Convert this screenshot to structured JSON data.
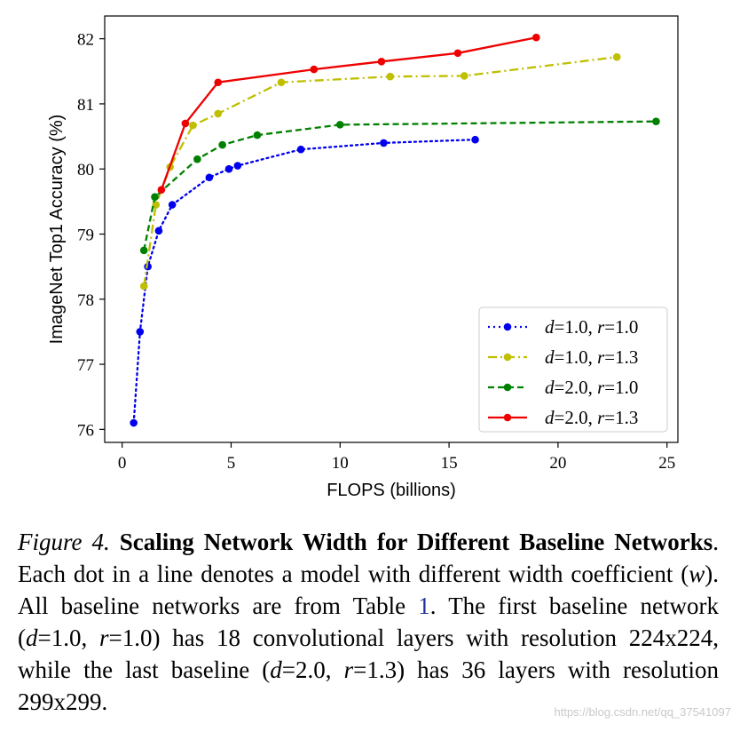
{
  "chart_data": {
    "type": "line",
    "xlabel": "FLOPS (billions)",
    "ylabel": "ImageNet Top1 Accuracy (%)",
    "xlim": [
      -0.8,
      25.5
    ],
    "ylim": [
      75.8,
      82.35
    ],
    "xticks": [
      0,
      5,
      10,
      15,
      20,
      25
    ],
    "yticks": [
      76,
      77,
      78,
      79,
      80,
      81,
      82
    ],
    "grid": false,
    "legend_position": "lower-right",
    "series": [
      {
        "label_d": "d",
        "label_eq1": "=1.0, ",
        "label_r": "r",
        "label_eq2": "=1.0",
        "color": "#0000ee",
        "linestyle": "dotted",
        "x": [
          0.53,
          0.82,
          1.18,
          1.68,
          2.3,
          4.0,
          4.9,
          5.3,
          8.2,
          12.0,
          16.2
        ],
        "y": [
          76.1,
          77.5,
          78.5,
          79.05,
          79.45,
          79.87,
          80.0,
          80.05,
          80.3,
          80.4,
          80.45
        ]
      },
      {
        "label_d": "d",
        "label_eq1": "=1.0, ",
        "label_r": "r",
        "label_eq2": "=1.3",
        "color": "#bfbf00",
        "linestyle": "dashdot",
        "x": [
          1.0,
          1.55,
          2.2,
          3.25,
          4.4,
          7.3,
          12.3,
          15.7,
          22.7
        ],
        "y": [
          78.2,
          79.45,
          80.03,
          80.67,
          80.85,
          81.33,
          81.42,
          81.43,
          81.72
        ]
      },
      {
        "label_d": "d",
        "label_eq1": "=2.0, ",
        "label_r": "r",
        "label_eq2": "=1.0",
        "color": "#008000",
        "linestyle": "dashed",
        "x": [
          1.0,
          1.5,
          3.45,
          4.6,
          6.2,
          10.0,
          24.5
        ],
        "y": [
          78.75,
          79.57,
          80.15,
          80.37,
          80.52,
          80.68,
          80.73
        ]
      },
      {
        "label_d": "d",
        "label_eq1": "=2.0, ",
        "label_r": "r",
        "label_eq2": "=1.3",
        "color": "#ee0000",
        "linestyle": "solid",
        "x": [
          1.8,
          2.9,
          4.4,
          8.8,
          11.9,
          15.4,
          19.0
        ],
        "y": [
          79.68,
          80.7,
          81.33,
          81.53,
          81.65,
          81.78,
          82.02
        ]
      }
    ]
  },
  "caption": {
    "fig_label": "Figure 4.",
    "title": "Scaling Network Width for Different Baseline Networks",
    "text_1": ". Each dot in a line denotes a model with different width coefficient (",
    "var_w": "w",
    "text_2": "). All baseline networks are from Table ",
    "table_ref": "1",
    "text_3": ". The first baseline network (",
    "var_d1": "d",
    "text_4": "=1.0, ",
    "var_r1": "r",
    "text_5": "=1.0) has 18 convolutional layers with resolution 224x224, while the last baseline (",
    "var_d2": "d",
    "text_6": "=2.0, ",
    "var_r2": "r",
    "text_7": "=1.3) has 36 layers with resolution 299x299."
  },
  "watermark": "https://blog.csdn.net/qq_37541097"
}
